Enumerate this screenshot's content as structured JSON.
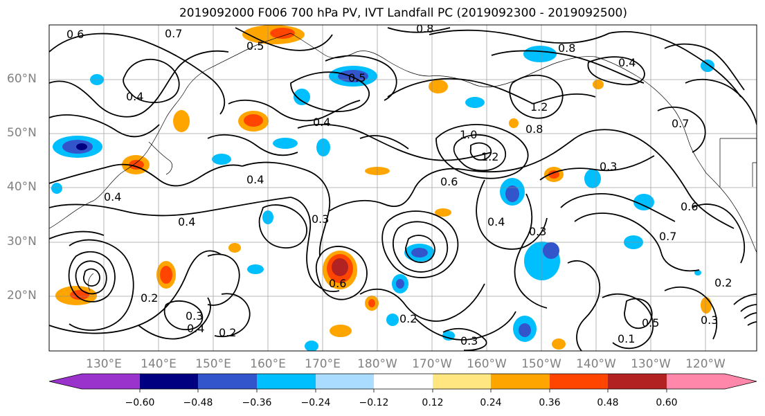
{
  "title": "2019092000 F006 700 hPa PV, IVT Landfall PC (2019092300 - 2019092500)",
  "lat_labels": [
    "60°N",
    "50°N",
    "40°N",
    "30°N",
    "20°N"
  ],
  "lon_labels": [
    "130°E",
    "140°E",
    "150°E",
    "160°E",
    "170°E",
    "180°W",
    "170°W",
    "160°W",
    "150°W",
    "140°W",
    "130°W",
    "120°W"
  ],
  "contour_labels": [
    "0.6",
    "0.7",
    "0.5",
    "0.8",
    "0.8",
    "0.4",
    "0.4",
    "0.4",
    "0.4",
    "0.4",
    "0.4",
    "0.6",
    "0.5",
    "1.0",
    "1.2",
    "1.2",
    "0.8",
    "0.7",
    "0.7",
    "0.3",
    "0.3",
    "0.6",
    "0.4",
    "0.2",
    "0.2",
    "0.3",
    "0.2",
    "0.6",
    "0.3",
    "0.4",
    "0.3",
    "0.5",
    "0.2",
    "0.3",
    "0.1"
  ],
  "colorbar": {
    "ticks": [
      "−0.60",
      "−0.48",
      "−0.36",
      "−0.24",
      "−0.12",
      "0.12",
      "0.24",
      "0.36",
      "0.48",
      "0.60"
    ],
    "colors": [
      "#9933cc",
      "#000080",
      "#3355cc",
      "#00bfff",
      "#aadcff",
      "#ffffff",
      "#ffe680",
      "#ffa500",
      "#ff4500",
      "#b22222",
      "#ff88aa"
    ]
  }
}
